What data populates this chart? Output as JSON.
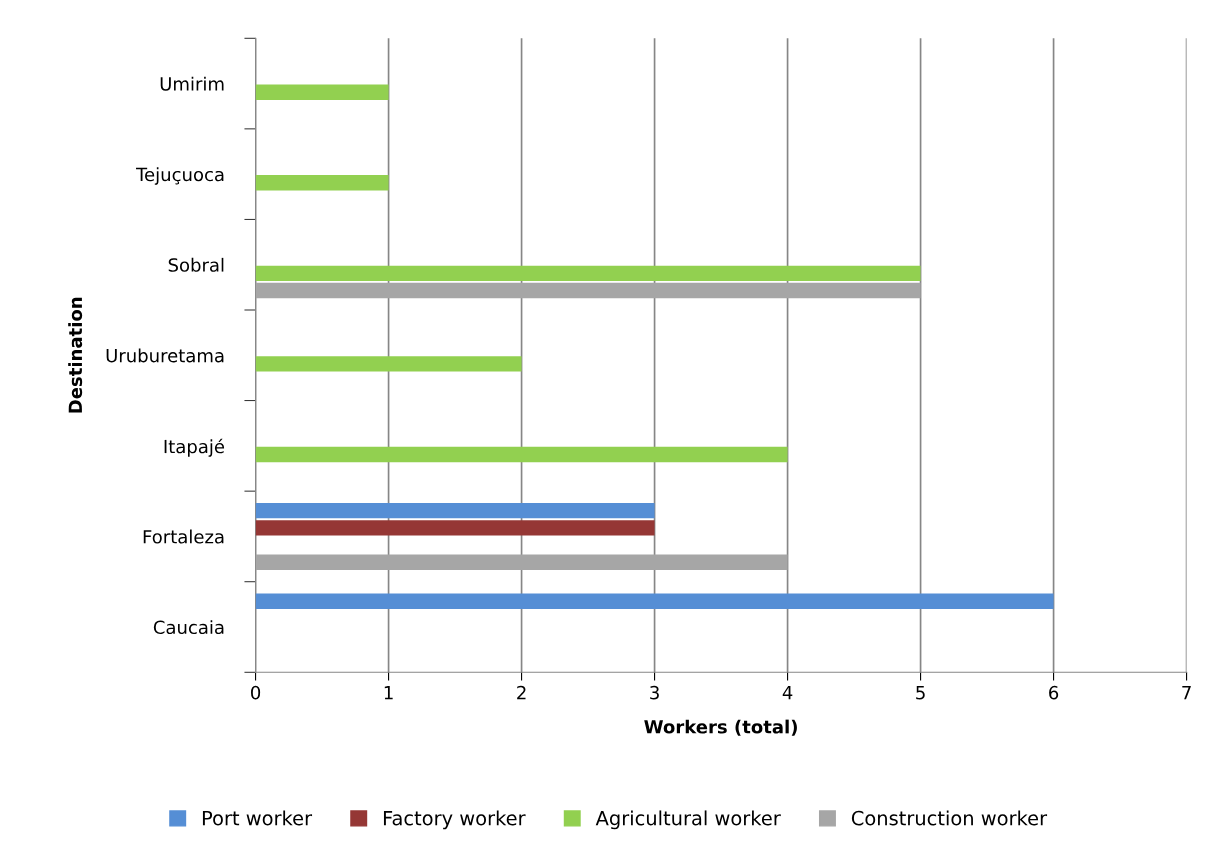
{
  "chart_data": {
    "type": "bar",
    "orientation": "horizontal",
    "xlabel": "Workers (total)",
    "ylabel": "Destination",
    "categories": [
      "Umirim",
      "Tejuçuoca",
      "Sobral",
      "Uruburetama",
      "Itapajé",
      "Fortaleza",
      "Caucaia"
    ],
    "series": [
      {
        "name": "Port worker",
        "color": "#558ed5",
        "values": [
          null,
          null,
          null,
          null,
          null,
          3,
          6
        ]
      },
      {
        "name": "Factory worker",
        "color": "#953735",
        "values": [
          null,
          null,
          null,
          null,
          null,
          3,
          null
        ]
      },
      {
        "name": "Agricultural worker",
        "color": "#92d050",
        "values": [
          1,
          1,
          5,
          2,
          4,
          null,
          null
        ]
      },
      {
        "name": "Construction worker",
        "color": "#a6a6a6",
        "values": [
          null,
          null,
          5,
          null,
          null,
          4,
          null
        ]
      }
    ],
    "xlim": [
      0,
      7
    ],
    "xticks": [
      0,
      1,
      2,
      3,
      4,
      5,
      6,
      7
    ],
    "grid": "x",
    "legend": "bottom"
  }
}
